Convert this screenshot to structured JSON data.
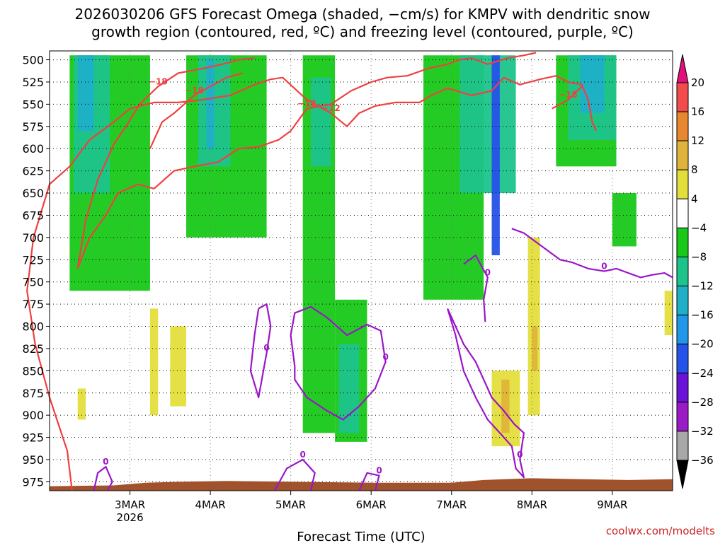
{
  "title_line1": "2026030206 GFS Forecast Omega (shaded, −cm/s) for KMPV with dendritic snow",
  "title_line2": "growth region (contoured, red, ºC) and freezing level (contoured, purple, ºC)",
  "credit": "coolwx.com/modelts",
  "chart_data": {
    "type": "heatmap",
    "xlabel": "Forecast Time (UTC)",
    "ylabel": "",
    "x_ticks": [
      {
        "label": "3MAR",
        "sublabel": "2026",
        "day": 1
      },
      {
        "label": "4MAR",
        "sublabel": "",
        "day": 2
      },
      {
        "label": "5MAR",
        "sublabel": "",
        "day": 3
      },
      {
        "label": "6MAR",
        "sublabel": "",
        "day": 4
      },
      {
        "label": "7MAR",
        "sublabel": "",
        "day": 5
      },
      {
        "label": "8MAR",
        "sublabel": "",
        "day": 6
      },
      {
        "label": "9MAR",
        "sublabel": "",
        "day": 7
      }
    ],
    "xlim": [
      0,
      7.75
    ],
    "y_ticks": [
      500,
      525,
      550,
      575,
      600,
      625,
      650,
      675,
      700,
      725,
      750,
      775,
      800,
      825,
      850,
      875,
      900,
      925,
      950,
      975
    ],
    "ylim_hPa": [
      490,
      985
    ],
    "colorbar": {
      "levels": [
        {
          "label": "20",
          "color": "#e0107a"
        },
        {
          "label": "16",
          "color": "#f24b4b"
        },
        {
          "label": "12",
          "color": "#e8872e"
        },
        {
          "label": "8",
          "color": "#e0b43a"
        },
        {
          "label": "4",
          "color": "#e3de3b"
        },
        {
          "label": "−4",
          "color": "#ffffff"
        },
        {
          "label": "−8",
          "color": "#19c819"
        },
        {
          "label": "−12",
          "color": "#1cc38b"
        },
        {
          "label": "−16",
          "color": "#1fb0c8"
        },
        {
          "label": "−20",
          "color": "#2097e8"
        },
        {
          "label": "−24",
          "color": "#2552e8"
        },
        {
          "label": "−28",
          "color": "#6a12d8"
        },
        {
          "label": "−32",
          "color": "#9a1ac8"
        },
        {
          "label": "−36",
          "color": "#a8a8a8"
        }
      ],
      "top_arrow_color": "#e0107a",
      "bottom_arrow_color": "#000000"
    },
    "shaded_regions": [
      {
        "level": "-8",
        "x": [
          0.25,
          1.25
        ],
        "p": [
          495,
          760
        ]
      },
      {
        "level": "-12",
        "x": [
          0.3,
          0.75
        ],
        "p": [
          495,
          650
        ]
      },
      {
        "level": "-16",
        "x": [
          0.35,
          0.55
        ],
        "p": [
          495,
          580
        ]
      },
      {
        "level": "-8",
        "x": [
          1.7,
          2.7
        ],
        "p": [
          495,
          700
        ]
      },
      {
        "level": "-12",
        "x": [
          1.85,
          2.25
        ],
        "p": [
          495,
          620
        ]
      },
      {
        "level": "-16",
        "x": [
          1.95,
          2.05
        ],
        "p": [
          500,
          600
        ]
      },
      {
        "level": "-8",
        "x": [
          3.15,
          3.55
        ],
        "p": [
          495,
          920
        ]
      },
      {
        "level": "-12",
        "x": [
          3.25,
          3.5
        ],
        "p": [
          520,
          620
        ]
      },
      {
        "level": "-8",
        "x": [
          3.55,
          3.95
        ],
        "p": [
          770,
          930
        ]
      },
      {
        "level": "-12",
        "x": [
          3.6,
          3.85
        ],
        "p": [
          820,
          920
        ]
      },
      {
        "level": "-8",
        "x": [
          4.65,
          5.4
        ],
        "p": [
          495,
          770
        ]
      },
      {
        "level": "-12",
        "x": [
          5.1,
          5.8
        ],
        "p": [
          495,
          650
        ]
      },
      {
        "level": "-24",
        "x": [
          5.5,
          5.6
        ],
        "p": [
          495,
          720
        ]
      },
      {
        "level": "-8",
        "x": [
          6.3,
          7.05
        ],
        "p": [
          495,
          620
        ]
      },
      {
        "level": "-12",
        "x": [
          6.45,
          7.05
        ],
        "p": [
          495,
          590
        ]
      },
      {
        "level": "-16",
        "x": [
          6.6,
          6.9
        ],
        "p": [
          495,
          560
        ]
      },
      {
        "level": "-8",
        "x": [
          7.0,
          7.3
        ],
        "p": [
          650,
          710
        ]
      },
      {
        "level": "4",
        "x": [
          0.35,
          0.45
        ],
        "p": [
          870,
          905
        ]
      },
      {
        "level": "4",
        "x": [
          1.25,
          1.35
        ],
        "p": [
          780,
          900
        ]
      },
      {
        "level": "4",
        "x": [
          1.5,
          1.7
        ],
        "p": [
          800,
          890
        ]
      },
      {
        "level": "4",
        "x": [
          5.5,
          5.85
        ],
        "p": [
          850,
          935
        ]
      },
      {
        "level": "8",
        "x": [
          5.62,
          5.72
        ],
        "p": [
          860,
          920
        ]
      },
      {
        "level": "4",
        "x": [
          5.95,
          6.1
        ],
        "p": [
          700,
          900
        ]
      },
      {
        "level": "8",
        "x": [
          6.0,
          6.07
        ],
        "p": [
          800,
          850
        ]
      },
      {
        "level": "4",
        "x": [
          7.65,
          7.75
        ],
        "p": [
          760,
          810
        ]
      }
    ],
    "dgz_contours": [
      {
        "label": "−12",
        "points": [
          [
            0.28,
            985
          ],
          [
            0.22,
            940
          ],
          [
            0.0,
            880
          ],
          [
            -0.18,
            820
          ],
          [
            -0.28,
            760
          ],
          [
            -0.2,
            700
          ],
          [
            0.0,
            640
          ],
          [
            0.25,
            620
          ],
          [
            0.5,
            590
          ],
          [
            0.8,
            570
          ],
          [
            1.0,
            555
          ],
          [
            1.3,
            548
          ],
          [
            1.6,
            548
          ],
          [
            1.9,
            545
          ],
          [
            2.25,
            540
          ],
          [
            2.55,
            528
          ],
          [
            2.75,
            522
          ],
          [
            2.9,
            520
          ],
          [
            3.2,
            545
          ],
          [
            3.5,
            560
          ],
          [
            3.7,
            575
          ],
          [
            3.85,
            560
          ],
          [
            4.05,
            552
          ],
          [
            4.3,
            548
          ],
          [
            4.6,
            548
          ],
          [
            4.75,
            540
          ],
          [
            4.95,
            532
          ],
          [
            5.25,
            540
          ],
          [
            5.5,
            535
          ],
          [
            5.65,
            520
          ],
          [
            5.85,
            528
          ],
          [
            6.1,
            522
          ],
          [
            6.3,
            518
          ],
          [
            6.45,
            525
          ],
          [
            6.62,
            528
          ],
          [
            6.7,
            545
          ],
          [
            6.75,
            570
          ],
          [
            6.8,
            580
          ]
        ]
      },
      {
        "label": "−18",
        "points": [
          [
            0.35,
            735
          ],
          [
            0.45,
            680
          ],
          [
            0.6,
            635
          ],
          [
            0.8,
            595
          ],
          [
            0.95,
            575
          ],
          [
            1.12,
            550
          ],
          [
            1.35,
            530
          ],
          [
            1.6,
            515
          ],
          [
            1.9,
            510
          ],
          [
            2.15,
            505
          ],
          [
            2.35,
            500
          ],
          [
            2.55,
            498
          ]
        ]
      },
      {
        "label": "−12",
        "points": [
          [
            0.35,
            735
          ],
          [
            0.5,
            700
          ],
          [
            0.7,
            675
          ],
          [
            0.85,
            650
          ],
          [
            1.1,
            640
          ],
          [
            1.3,
            645
          ],
          [
            1.55,
            625
          ],
          [
            1.8,
            620
          ],
          [
            2.1,
            615
          ],
          [
            2.35,
            600
          ],
          [
            2.6,
            598
          ],
          [
            2.85,
            590
          ],
          [
            3.0,
            580
          ],
          [
            3.2,
            555
          ],
          [
            3.5,
            550
          ],
          [
            3.75,
            535
          ],
          [
            4.0,
            525
          ],
          [
            4.2,
            520
          ],
          [
            4.45,
            518
          ],
          [
            4.7,
            510
          ],
          [
            4.95,
            505
          ],
          [
            5.1,
            500
          ],
          [
            5.25,
            498
          ],
          [
            5.45,
            505
          ],
          [
            5.7,
            498
          ],
          [
            5.9,
            495
          ],
          [
            6.05,
            492
          ]
        ]
      },
      {
        "label": "−18",
        "points": [
          [
            1.25,
            600
          ],
          [
            1.4,
            570
          ],
          [
            1.55,
            560
          ],
          [
            1.8,
            540
          ],
          [
            2.0,
            530
          ],
          [
            2.2,
            520
          ],
          [
            2.4,
            515
          ]
        ]
      },
      {
        "label": "−18",
        "points": [
          [
            6.25,
            555
          ],
          [
            6.45,
            545
          ],
          [
            6.62,
            530
          ]
        ]
      }
    ],
    "freezing_contours": [
      {
        "label": "0",
        "points": [
          [
            3.05,
            845
          ],
          [
            3.0,
            810
          ],
          [
            3.05,
            785
          ],
          [
            3.25,
            778
          ],
          [
            3.45,
            790
          ],
          [
            3.7,
            810
          ],
          [
            3.95,
            798
          ],
          [
            4.12,
            805
          ],
          [
            4.18,
            840
          ],
          [
            4.05,
            870
          ],
          [
            3.85,
            890
          ],
          [
            3.65,
            905
          ],
          [
            3.45,
            895
          ],
          [
            3.2,
            880
          ],
          [
            3.05,
            860
          ],
          [
            3.05,
            845
          ]
        ]
      },
      {
        "label": "0",
        "points": [
          [
            2.6,
            780
          ],
          [
            2.55,
            810
          ],
          [
            2.5,
            850
          ],
          [
            2.6,
            880
          ],
          [
            2.7,
            830
          ],
          [
            2.75,
            800
          ],
          [
            2.7,
            775
          ],
          [
            2.6,
            780
          ]
        ]
      },
      {
        "label": "0",
        "points": [
          [
            4.95,
            780
          ],
          [
            5.05,
            810
          ],
          [
            5.15,
            850
          ],
          [
            5.3,
            880
          ],
          [
            5.45,
            905
          ],
          [
            5.6,
            920
          ],
          [
            5.75,
            935
          ],
          [
            5.8,
            960
          ],
          [
            5.9,
            970
          ],
          [
            5.85,
            950
          ],
          [
            5.9,
            920
          ],
          [
            5.78,
            910
          ],
          [
            5.65,
            895
          ],
          [
            5.5,
            880
          ],
          [
            5.4,
            860
          ],
          [
            5.3,
            840
          ],
          [
            5.15,
            820
          ],
          [
            5.05,
            800
          ],
          [
            4.95,
            780
          ]
        ]
      },
      {
        "label": "0",
        "points": [
          [
            5.15,
            730
          ],
          [
            5.3,
            720
          ],
          [
            5.45,
            745
          ],
          [
            5.4,
            770
          ],
          [
            5.42,
            795
          ]
        ]
      },
      {
        "label": "0",
        "points": [
          [
            5.75,
            690
          ],
          [
            5.9,
            695
          ],
          [
            6.05,
            705
          ],
          [
            6.2,
            715
          ],
          [
            6.35,
            725
          ],
          [
            6.5,
            728
          ],
          [
            6.7,
            735
          ],
          [
            6.9,
            738
          ],
          [
            7.05,
            735
          ],
          [
            7.2,
            740
          ],
          [
            7.35,
            745
          ],
          [
            7.5,
            742
          ],
          [
            7.65,
            740
          ],
          [
            7.75,
            745
          ]
        ]
      },
      {
        "label": "0",
        "points": [
          [
            0.55,
            985
          ],
          [
            0.6,
            965
          ],
          [
            0.7,
            958
          ],
          [
            0.78,
            975
          ],
          [
            0.72,
            985
          ]
        ]
      },
      {
        "label": "0",
        "points": [
          [
            2.8,
            985
          ],
          [
            2.95,
            960
          ],
          [
            3.15,
            950
          ],
          [
            3.3,
            965
          ],
          [
            3.25,
            985
          ]
        ]
      },
      {
        "label": "0",
        "points": [
          [
            3.85,
            985
          ],
          [
            3.95,
            965
          ],
          [
            4.1,
            968
          ],
          [
            4.05,
            985
          ]
        ]
      }
    ],
    "terrain_color": "#a0522d"
  }
}
